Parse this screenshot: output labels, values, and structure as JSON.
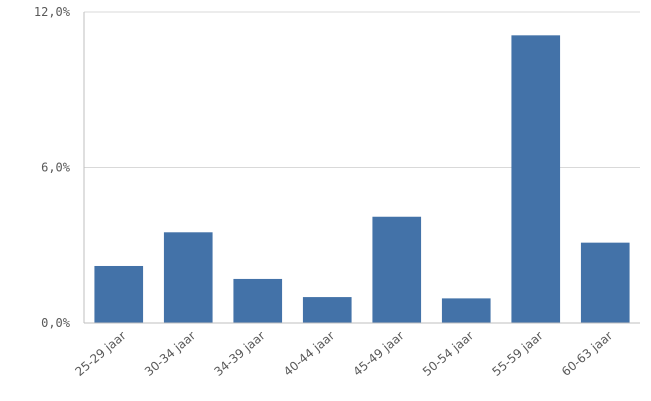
{
  "chart_data": {
    "type": "bar",
    "categories": [
      "25-29 jaar",
      "30-34 jaar",
      "34-39 jaar",
      "40-44 jaar",
      "45-49 jaar",
      "50-54 jaar",
      "55-59 jaar",
      "60-63 jaar"
    ],
    "values": [
      2.2,
      3.5,
      1.7,
      1.0,
      4.1,
      0.95,
      11.1,
      3.1
    ],
    "y_ticks": [
      "0,0%",
      "6,0%",
      "12,0%"
    ],
    "y_tick_values": [
      0,
      6,
      12
    ],
    "ylim": [
      0,
      12
    ],
    "grid": true,
    "legend": "none",
    "bar_color": "#4372a8"
  }
}
